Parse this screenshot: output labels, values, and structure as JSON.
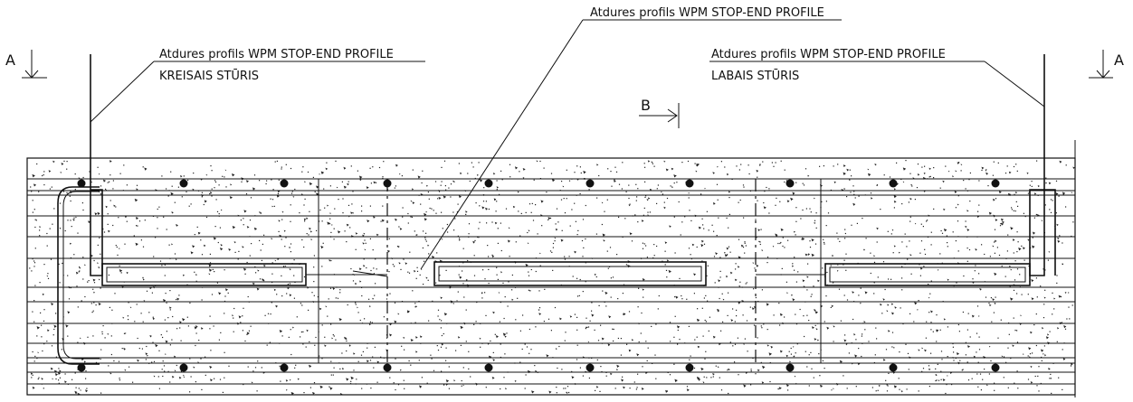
{
  "callouts": {
    "left": {
      "line1": "Atdures profils WPM STOP-END PROFILE",
      "line2": "KREISAIS STŪRIS"
    },
    "center": {
      "line1": "Atdures profils WPM STOP-END PROFILE"
    },
    "right": {
      "line1": "Atdures profils WPM STOP-END PROFILE",
      "line2": "LABAIS STŪRIS"
    }
  },
  "section_marks": {
    "a_left": "A",
    "a_right": "A",
    "b": "B"
  }
}
